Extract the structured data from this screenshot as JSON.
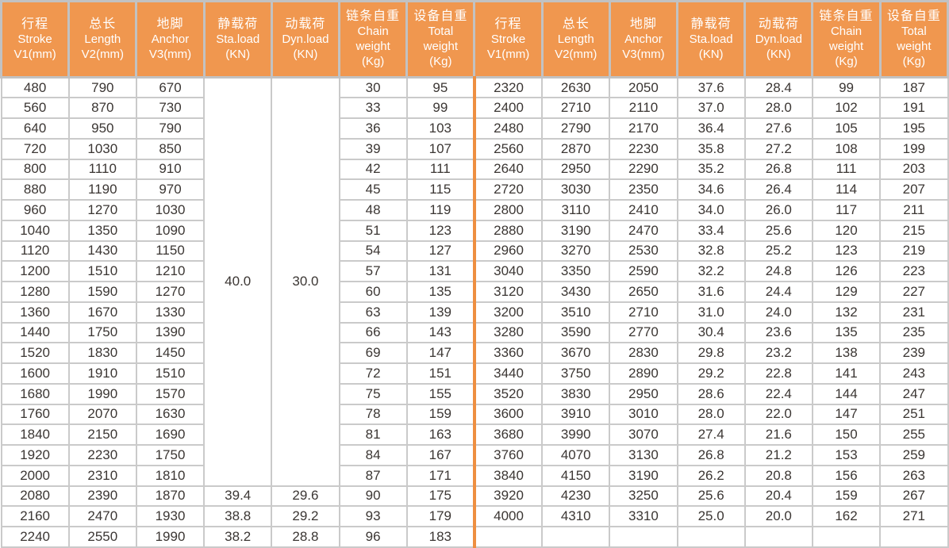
{
  "colors": {
    "header_bg": "#F0974F",
    "half_divider": "#EE8F41",
    "grid_line": "#CACACA",
    "header_gap": "#C2C2C2",
    "outer_border": "#9E9E9E",
    "body_text": "#3B3633",
    "header_text": "#FFFFFF"
  },
  "table": {
    "header_columns": [
      {
        "key": "stroke",
        "lines": [
          "行程",
          "Stroke",
          "V1(mm)"
        ]
      },
      {
        "key": "length",
        "lines": [
          "总长",
          "Length",
          "V2(mm)"
        ]
      },
      {
        "key": "anchor",
        "lines": [
          "地脚",
          "Anchor",
          "V3(mm)"
        ]
      },
      {
        "key": "sta-load",
        "lines": [
          "静载荷",
          "Sta.load",
          "(KN)"
        ]
      },
      {
        "key": "dyn-load",
        "lines": [
          "动载荷",
          "Dyn.load",
          "(KN)"
        ]
      },
      {
        "key": "chain-weight",
        "lines": [
          "链条自重",
          "Chain",
          "weight",
          "(Kg)"
        ]
      },
      {
        "key": "total-weight",
        "lines": [
          "设备自重",
          "Total",
          "weight",
          "(Kg)"
        ]
      }
    ],
    "merged": {
      "sta_load": "40.0",
      "dyn_load": "30.0",
      "row_span": 20
    },
    "left_rows": [
      [
        "480",
        "790",
        "670",
        "",
        "",
        "30",
        "95"
      ],
      [
        "560",
        "870",
        "730",
        "",
        "",
        "33",
        "99"
      ],
      [
        "640",
        "950",
        "790",
        "",
        "",
        "36",
        "103"
      ],
      [
        "720",
        "1030",
        "850",
        "",
        "",
        "39",
        "107"
      ],
      [
        "800",
        "1110",
        "910",
        "",
        "",
        "42",
        "111"
      ],
      [
        "880",
        "1190",
        "970",
        "",
        "",
        "45",
        "115"
      ],
      [
        "960",
        "1270",
        "1030",
        "",
        "",
        "48",
        "119"
      ],
      [
        "1040",
        "1350",
        "1090",
        "",
        "",
        "51",
        "123"
      ],
      [
        "1120",
        "1430",
        "1150",
        "",
        "",
        "54",
        "127"
      ],
      [
        "1200",
        "1510",
        "1210",
        "",
        "",
        "57",
        "131"
      ],
      [
        "1280",
        "1590",
        "1270",
        "",
        "",
        "60",
        "135"
      ],
      [
        "1360",
        "1670",
        "1330",
        "",
        "",
        "63",
        "139"
      ],
      [
        "1440",
        "1750",
        "1390",
        "",
        "",
        "66",
        "143"
      ],
      [
        "1520",
        "1830",
        "1450",
        "",
        "",
        "69",
        "147"
      ],
      [
        "1600",
        "1910",
        "1510",
        "",
        "",
        "72",
        "151"
      ],
      [
        "1680",
        "1990",
        "1570",
        "",
        "",
        "75",
        "155"
      ],
      [
        "1760",
        "2070",
        "1630",
        "",
        "",
        "78",
        "159"
      ],
      [
        "1840",
        "2150",
        "1690",
        "",
        "",
        "81",
        "163"
      ],
      [
        "1920",
        "2230",
        "1750",
        "",
        "",
        "84",
        "167"
      ],
      [
        "2000",
        "2310",
        "1810",
        "",
        "",
        "87",
        "171"
      ],
      [
        "2080",
        "2390",
        "1870",
        "39.4",
        "29.6",
        "90",
        "175"
      ],
      [
        "2160",
        "2470",
        "1930",
        "38.8",
        "29.2",
        "93",
        "179"
      ],
      [
        "2240",
        "2550",
        "1990",
        "38.2",
        "28.8",
        "96",
        "183"
      ]
    ],
    "right_rows": [
      [
        "2320",
        "2630",
        "2050",
        "37.6",
        "28.4",
        "99",
        "187"
      ],
      [
        "2400",
        "2710",
        "2110",
        "37.0",
        "28.0",
        "102",
        "191"
      ],
      [
        "2480",
        "2790",
        "2170",
        "36.4",
        "27.6",
        "105",
        "195"
      ],
      [
        "2560",
        "2870",
        "2230",
        "35.8",
        "27.2",
        "108",
        "199"
      ],
      [
        "2640",
        "2950",
        "2290",
        "35.2",
        "26.8",
        "111",
        "203"
      ],
      [
        "2720",
        "3030",
        "2350",
        "34.6",
        "26.4",
        "114",
        "207"
      ],
      [
        "2800",
        "3110",
        "2410",
        "34.0",
        "26.0",
        "117",
        "211"
      ],
      [
        "2880",
        "3190",
        "2470",
        "33.4",
        "25.6",
        "120",
        "215"
      ],
      [
        "2960",
        "3270",
        "2530",
        "32.8",
        "25.2",
        "123",
        "219"
      ],
      [
        "3040",
        "3350",
        "2590",
        "32.2",
        "24.8",
        "126",
        "223"
      ],
      [
        "3120",
        "3430",
        "2650",
        "31.6",
        "24.4",
        "129",
        "227"
      ],
      [
        "3200",
        "3510",
        "2710",
        "31.0",
        "24.0",
        "132",
        "231"
      ],
      [
        "3280",
        "3590",
        "2770",
        "30.4",
        "23.6",
        "135",
        "235"
      ],
      [
        "3360",
        "3670",
        "2830",
        "29.8",
        "23.2",
        "138",
        "239"
      ],
      [
        "3440",
        "3750",
        "2890",
        "29.2",
        "22.8",
        "141",
        "243"
      ],
      [
        "3520",
        "3830",
        "2950",
        "28.6",
        "22.4",
        "144",
        "247"
      ],
      [
        "3600",
        "3910",
        "3010",
        "28.0",
        "22.0",
        "147",
        "251"
      ],
      [
        "3680",
        "3990",
        "3070",
        "27.4",
        "21.6",
        "150",
        "255"
      ],
      [
        "3760",
        "4070",
        "3130",
        "26.8",
        "21.2",
        "153",
        "259"
      ],
      [
        "3840",
        "4150",
        "3190",
        "26.2",
        "20.8",
        "156",
        "263"
      ],
      [
        "3920",
        "4230",
        "3250",
        "25.6",
        "20.4",
        "159",
        "267"
      ],
      [
        "4000",
        "4310",
        "3310",
        "25.0",
        "20.0",
        "162",
        "271"
      ],
      [
        "",
        "",
        "",
        "",
        "",
        "",
        ""
      ]
    ]
  }
}
